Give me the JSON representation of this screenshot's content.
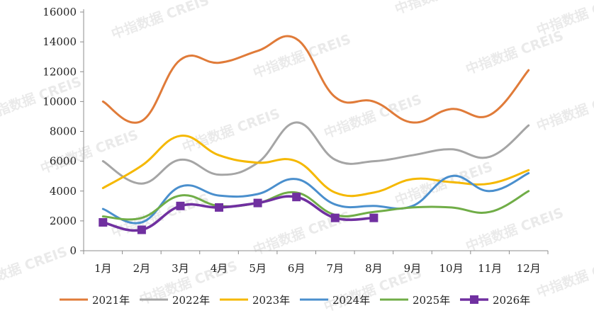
{
  "watermark_text": "中指数据 CREIS",
  "chart_data": {
    "type": "line",
    "title": "",
    "xlabel": "",
    "ylabel": "",
    "categories": [
      "1月",
      "2月",
      "3月",
      "4月",
      "5月",
      "6月",
      "7月",
      "8月",
      "9月",
      "10月",
      "11月",
      "12月"
    ],
    "ylim": [
      0,
      16000
    ],
    "yticks": [
      0,
      2000,
      4000,
      6000,
      8000,
      10000,
      12000,
      14000,
      16000
    ],
    "grid": false,
    "legend_position": "bottom",
    "series": [
      {
        "name": "2021年",
        "color": "#E07B39",
        "marker": "none",
        "values": [
          10000,
          8700,
          12800,
          12600,
          13400,
          14200,
          10300,
          10000,
          8600,
          9500,
          9100,
          12100
        ]
      },
      {
        "name": "2022年",
        "color": "#A5A5A5",
        "marker": "none",
        "values": [
          6000,
          4500,
          6100,
          5100,
          5900,
          8600,
          6100,
          6000,
          6400,
          6800,
          6300,
          8400
        ]
      },
      {
        "name": "2023年",
        "color": "#F5B800",
        "marker": "none",
        "values": [
          4200,
          5700,
          7700,
          6400,
          5900,
          6000,
          3900,
          3900,
          4800,
          4600,
          4500,
          5400
        ]
      },
      {
        "name": "2024年",
        "color": "#4A8FCD",
        "marker": "none",
        "values": [
          2800,
          1900,
          4300,
          3700,
          3800,
          4800,
          3100,
          3000,
          3000,
          5000,
          4000,
          5200
        ]
      },
      {
        "name": "2025年",
        "color": "#70AD47",
        "marker": "none",
        "values": [
          2300,
          2200,
          3700,
          3000,
          3200,
          3900,
          2400,
          2600,
          2900,
          2900,
          2600,
          4000
        ]
      },
      {
        "name": "2026年",
        "color": "#7030A0",
        "marker": "square",
        "values": [
          1900,
          1400,
          3000,
          2900,
          3200,
          3600,
          2200,
          2200,
          null,
          null,
          null,
          null
        ]
      }
    ]
  }
}
